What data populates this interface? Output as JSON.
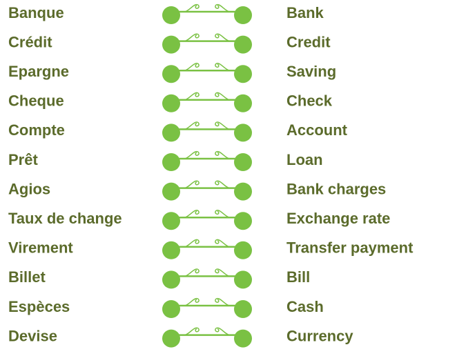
{
  "rows": [
    {
      "fr": "Banque",
      "en": "Bank"
    },
    {
      "fr": "Crédit",
      "en": "Credit"
    },
    {
      "fr": "Epargne",
      "en": "Saving"
    },
    {
      "fr": "Cheque",
      "en": "Check"
    },
    {
      "fr": "Compte",
      "en": "Account"
    },
    {
      "fr": "Prêt",
      "en": "Loan"
    },
    {
      "fr": "Agios",
      "en": "Bank charges"
    },
    {
      "fr": "Taux de change",
      "en": "Exchange rate"
    },
    {
      "fr": "Virement",
      "en": "Transfer payment"
    },
    {
      "fr": "Billet",
      "en": "Bill"
    },
    {
      "fr": "Espèces",
      "en": "Cash"
    },
    {
      "fr": "Devise",
      "en": "Currency"
    }
  ]
}
